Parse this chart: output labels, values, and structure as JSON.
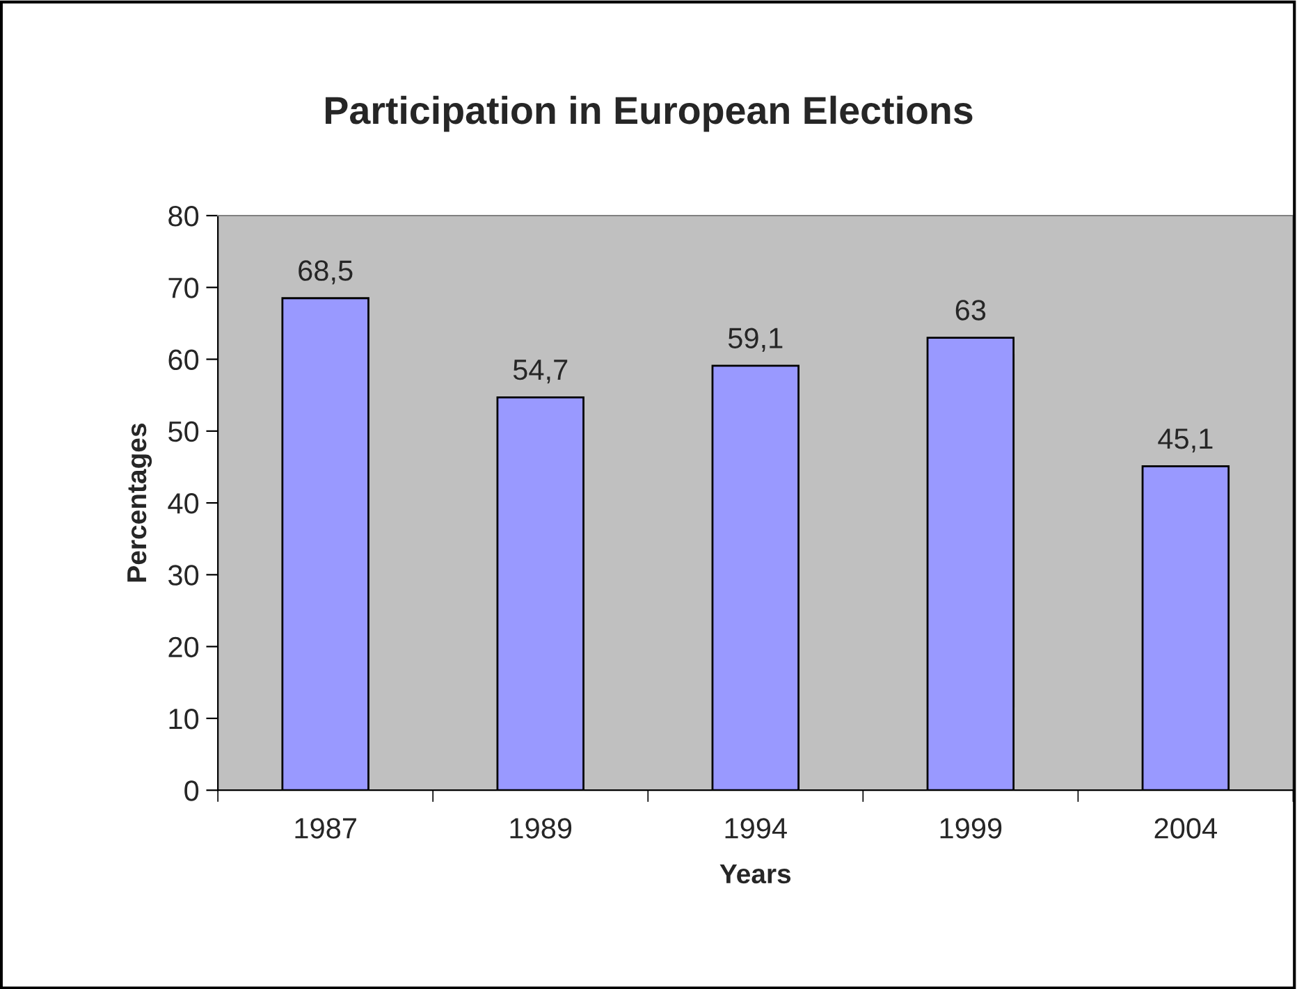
{
  "chart_data": {
    "type": "bar",
    "title": "Participation in European Elections",
    "xlabel": "Years",
    "ylabel": "Percentages",
    "categories": [
      "1987",
      "1989",
      "1994",
      "1999",
      "2004"
    ],
    "values": [
      68.5,
      54.7,
      59.1,
      63,
      45.1
    ],
    "value_labels": [
      "68,5",
      "54,7",
      "59,1",
      "63",
      "45,1"
    ],
    "color": "#9999ff",
    "ylim": [
      0,
      80
    ],
    "yticks": [
      0,
      10,
      20,
      30,
      40,
      50,
      60,
      70,
      80
    ],
    "grid": false,
    "legend": false
  }
}
